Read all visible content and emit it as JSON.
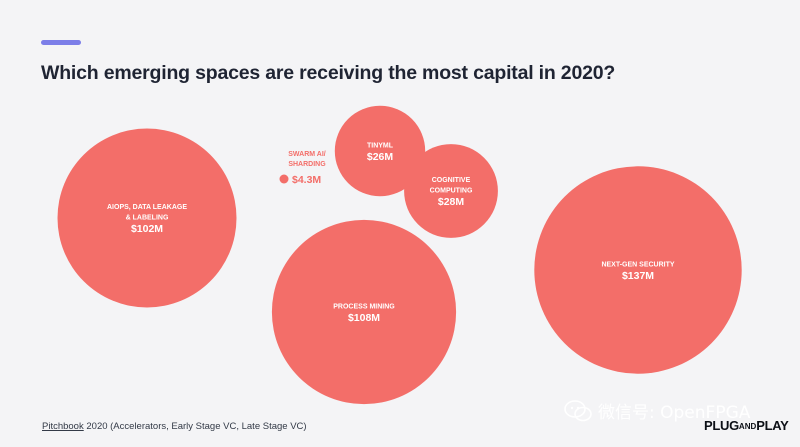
{
  "header": {
    "title": "Which emerging spaces are receiving the most capital in 2020?"
  },
  "colors": {
    "accent": "#7c7ee8",
    "bubble": "#f36e69",
    "small_label": "#f36e69",
    "bubble_text": "#ffffff"
  },
  "chart_data": {
    "type": "bubble",
    "title": "Which emerging spaces are receiving the most capital in 2020?",
    "unit": "$M",
    "items": [
      {
        "name": "AIOPS, DATA LEAKAGE & LABELING",
        "label_lines": [
          "AIOPS, DATA LEAKAGE",
          "& LABELING"
        ],
        "value": 102,
        "value_label": "$102M"
      },
      {
        "name": "SWARM AI/ SHARDING",
        "label_lines": [
          "SWARM AI/",
          "SHARDING"
        ],
        "value": 4.3,
        "value_label": "$4.3M"
      },
      {
        "name": "TINYML",
        "label_lines": [
          "TINYML"
        ],
        "value": 26,
        "value_label": "$26M"
      },
      {
        "name": "COGNITIVE COMPUTING",
        "label_lines": [
          "COGNITIVE",
          "COMPUTING"
        ],
        "value": 28,
        "value_label": "$28M"
      },
      {
        "name": "PROCESS MINING",
        "label_lines": [
          "PROCESS MINING"
        ],
        "value": 108,
        "value_label": "$108M"
      },
      {
        "name": "NEXT-GEN SECURITY",
        "label_lines": [
          "NEXT-GEN SECURITY"
        ],
        "value": 137,
        "value_label": "$137M"
      }
    ]
  },
  "footer": {
    "source_underlined": "Pitchbook",
    "source_rest": " 2020 (Accelerators, Early Stage VC, Late Stage VC)",
    "watermark": "微信号: OpenFPGA",
    "logo_plug": "PLUG",
    "logo_and": "AND",
    "logo_play": "PLAY"
  }
}
